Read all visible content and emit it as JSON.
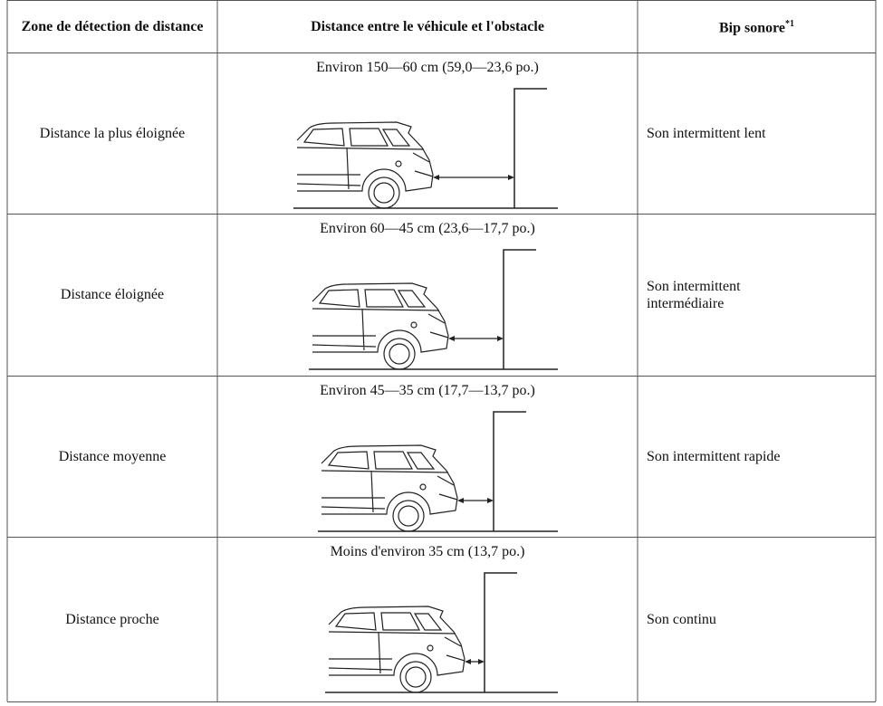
{
  "table": {
    "headers": [
      "Zone de détection de distance",
      "Distance entre le véhicule et l'obstacle",
      "Bip sonore"
    ],
    "header_footnote": "*1",
    "rows": [
      [
        "Distance la plus éloignée",
        "Environ 150—60 cm (59,0—23,6 po.)",
        "Son intermittent lent"
      ],
      [
        "Distance éloignée",
        "Environ 60—45 cm (23,6—17,7 po.)",
        "Son intermittent intermédiaire"
      ],
      [
        "Distance moyenne",
        "Environ 45—35 cm (17,7—13,7 po.)",
        "Son intermittent rapide"
      ],
      [
        "Distance proche",
        "Moins d'environ 35 cm (13,7 po.)",
        "Son continu"
      ]
    ]
  }
}
